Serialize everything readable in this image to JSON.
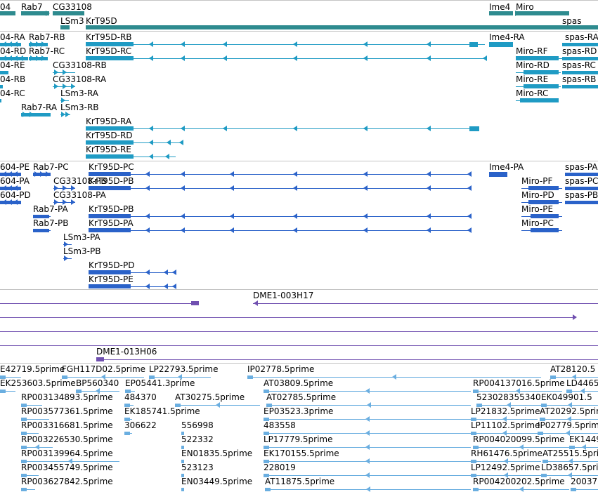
{
  "colors": {
    "gene": "#2e8b8f",
    "transcript": "#1f9bc4",
    "cds": "#2a62c9",
    "clone": "#7050b0",
    "est": "#6aaee0",
    "separator": "#c4c4c4"
  },
  "gene_track": {
    "labels": [
      "04",
      "Rab7",
      "CG33108",
      "LSm3",
      "KrT95D",
      "Ime4",
      "Miro",
      "spas"
    ]
  },
  "transcript_track": {
    "labels": [
      "04-RA",
      "Rab7-RB",
      "KrT95D-RB",
      "Ime4-RA",
      "spas-RA",
      "04-RD",
      "Rab7-RC",
      "KrT95D-RC",
      "Miro-RF",
      "spas-RD",
      "04-RE",
      "CG33108-RB",
      "Miro-RD",
      "spas-RC",
      "04-RB",
      "CG33108-RA",
      "Miro-RE",
      "spas-RB",
      "04-RC",
      "LSm3-RA",
      "Miro-RC",
      "Rab7-RA",
      "LSm3-RB",
      "KrT95D-RA",
      "KrT95D-RD",
      "KrT95D-RE"
    ]
  },
  "cds_track": {
    "labels": [
      "604-PE",
      "Rab7-PC",
      "KrT95D-PC",
      "Ime4-PA",
      "spas-PA",
      "604-PA",
      "CG33108-PB",
      "KrT95D-PB",
      "Miro-PF",
      "spas-PC",
      "604-PD",
      "CG33108-PA",
      "Miro-PD",
      "spas-PB",
      "Rab7-PA",
      "KrT95D-PB",
      "Miro-PE",
      "Rab7-PB",
      "KrT95D-PA",
      "Miro-PC",
      "LSm3-PA",
      "LSm3-PB",
      "KrT95D-PD",
      "KrT95D-PE"
    ]
  },
  "clone_track": {
    "labels": [
      "DME1-003H17",
      "DME1-013H06"
    ]
  },
  "est_track": {
    "labels": [
      "E42719.5prime",
      "FGH117D02.5prime",
      "LP22793.5prime",
      "IP02778.5prime",
      "AT28120.5",
      "EK253603.5prime",
      "BP560340",
      "EP05441.3prime",
      "AT03809.5prime",
      "RP004137016.5prime",
      "LD4465",
      "RP003134893.5prime",
      "484370",
      "AT30275.5prime",
      "AT02785.5prime",
      "523028355340",
      "EK049901.5",
      "RP003577361.5prime",
      "EK185741.5prime",
      "EP03523.3prime",
      "LP21832.5prime",
      "AT20292.5prime",
      "RP003316681.5prime",
      "306622",
      "556998",
      "483558",
      "LP11102.5prime",
      "IP02779.5prime",
      "RP003226530.5prime",
      "522332",
      "LP17779.5prime",
      "RP004020099.5prime",
      "EK1449",
      "RP003139964.5prime",
      "EN01835.5prime",
      "EK170155.5prime",
      "RH61476.5prime",
      "AT25515.5prime",
      "RP003455749.5prime",
      "523123",
      "228019",
      "LP12492.5prime",
      "LD38657.5prime",
      "RP003627842.5prime",
      "EN03449.5prime",
      "AT11875.5prime",
      "RP004200202.5prime",
      "20037"
    ]
  }
}
